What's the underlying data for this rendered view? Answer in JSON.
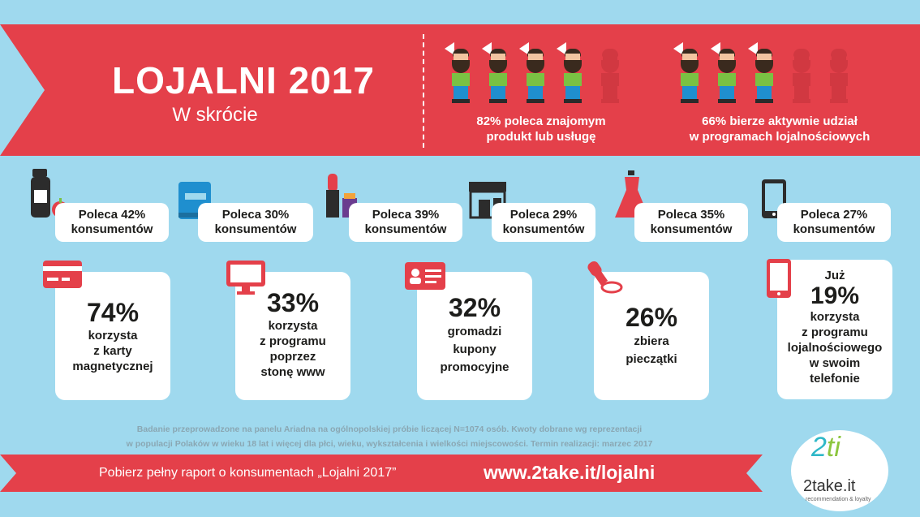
{
  "header": {
    "title": "LOJALNI 2017",
    "subtitle": "W skrócie",
    "stat_left": [
      "82% poleca znajomym",
      "produkt lub usługę"
    ],
    "stat_right": [
      "66% bierze aktywnie udział",
      "w programach lojalnościowych"
    ]
  },
  "recommend": [
    {
      "icon": "bottle-apple-icon",
      "line1": "Poleca 42%",
      "line2": "konsumentów"
    },
    {
      "icon": "book-icon",
      "line1": "Poleca 30%",
      "line2": "konsumentów"
    },
    {
      "icon": "cosmetics-icon",
      "line1": "Poleca 39%",
      "line2": "konsumentów"
    },
    {
      "icon": "shop-icon",
      "line1": "Poleca 29%",
      "line2": "konsumentów"
    },
    {
      "icon": "dress-icon",
      "line1": "Poleca 35%",
      "line2": "konsumentów"
    },
    {
      "icon": "tablet-icon",
      "line1": "Poleca 27%",
      "line2": "konsumentów"
    }
  ],
  "usage": [
    {
      "icon": "card-icon",
      "pre": "",
      "pct": "74%",
      "lines": [
        "korzysta",
        "z karty",
        "magnetycznej"
      ]
    },
    {
      "icon": "monitor-icon",
      "pre": "",
      "pct": "33%",
      "lines": [
        "korzysta",
        "z programu",
        "poprzez",
        "stonę www"
      ]
    },
    {
      "icon": "coupon-icon",
      "pre": "",
      "pct": "32%",
      "lines": [
        "gromadzi",
        "kupony",
        "promocyjne"
      ]
    },
    {
      "icon": "stamp-icon",
      "pre": "",
      "pct": "26%",
      "lines": [
        "zbiera",
        "pieczątki"
      ]
    },
    {
      "icon": "phone-icon",
      "pre": "Już",
      "pct": "19%",
      "lines": [
        "korzysta",
        "z programu",
        "lojalnościowego",
        "w swoim",
        "telefonie"
      ]
    }
  ],
  "footnote": [
    "Badanie przeprowadzone na panelu Ariadna na ogólnopolskiej próbie liczącej N=1074 osób. Kwoty dobrane wg reprezentacji",
    "w populacji Polaków w wieku 18 lat i więcej dla płci, wieku, wykształcenia i wielkości miejscowości. Termin realizacji: marzec 2017"
  ],
  "footer": {
    "cta": "Pobierz pełny raport o konsumentach „Lojalni 2017”",
    "url": "www.2take.it/lojalni"
  },
  "logo": {
    "mark_a": "2",
    "mark_b": "ti",
    "name": "2take.it",
    "tagline": "recommendation & loyalty"
  },
  "colors": {
    "accent": "#e4404a",
    "background": "#9fd9ee"
  }
}
